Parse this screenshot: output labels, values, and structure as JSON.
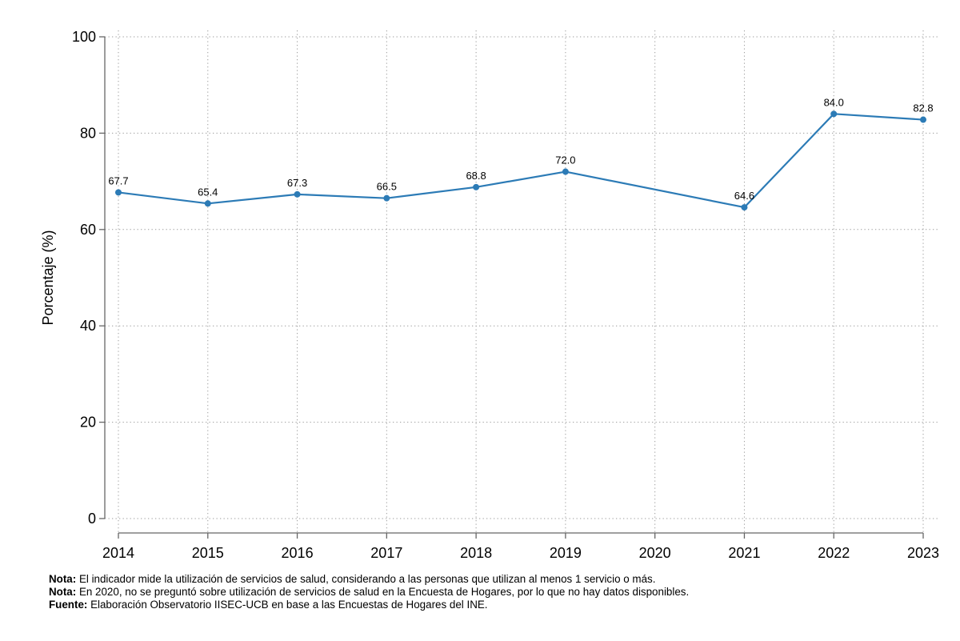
{
  "chart_data": {
    "type": "line",
    "x": [
      "2014",
      "2015",
      "2016",
      "2017",
      "2018",
      "2019",
      "2020",
      "2021",
      "2022",
      "2023"
    ],
    "series": [
      {
        "values": [
          67.7,
          65.4,
          67.3,
          66.5,
          68.8,
          72.0,
          null,
          64.6,
          84.0,
          82.8
        ]
      }
    ],
    "data_labels": [
      "67.7",
      "65.4",
      "67.3",
      "66.5",
      "68.8",
      "72.0",
      "",
      "64.6",
      "84.0",
      "82.8"
    ],
    "ylabel": "Porcentaje (%)",
    "xlabel": "",
    "ylim": [
      0,
      100
    ],
    "yticks": [
      "0",
      "20",
      "40",
      "60",
      "80",
      "100"
    ],
    "grid": true,
    "line_color": "#2c7bb6",
    "missing_value_handling": "connect-gaps"
  },
  "notes": [
    {
      "label": "Nota:",
      "text": " El indicador mide la utilización de servicios de salud, considerando a las personas que utilizan al menos 1 servicio o más."
    },
    {
      "label": "Nota:",
      "text": " En 2020, no se preguntó sobre utilización de servicios de salud en la Encuesta de Hogares, por lo que no hay datos disponibles."
    },
    {
      "label": "Fuente:",
      "text": " Elaboración Observatorio IISEC-UCB en base a las Encuestas de Hogares del INE."
    }
  ]
}
